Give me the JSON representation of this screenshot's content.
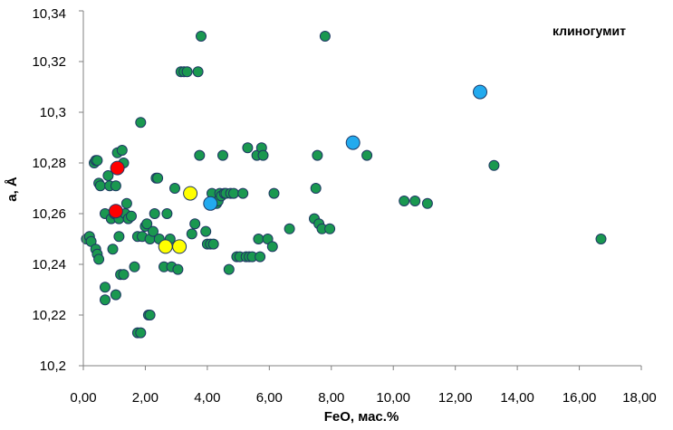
{
  "chart_data": {
    "type": "scatter",
    "title": "",
    "annotation": "клиногумит",
    "xlabel": "FeO, мас.%",
    "ylabel": "a, Å",
    "xlim": [
      0,
      18
    ],
    "ylim": [
      10.2,
      10.34
    ],
    "x_ticks": [
      "0,00",
      "2,00",
      "4,00",
      "6,00",
      "8,00",
      "10,00",
      "12,00",
      "14,00",
      "16,00",
      "18,00"
    ],
    "y_ticks": [
      "10,2",
      "10,22",
      "10,24",
      "10,26",
      "10,28",
      "10,3",
      "10,32",
      "10,34"
    ],
    "grid": false,
    "legend": "none",
    "colors": {
      "green": "#1a9850",
      "red": "#ff0000",
      "yellow": "#ffff00",
      "blue": "#22aaee",
      "marker_outline": "#1f3864",
      "axis": "#808080"
    },
    "series": [
      {
        "color": "green",
        "points": [
          [
            0.1,
            10.25
          ],
          [
            0.2,
            10.251
          ],
          [
            0.25,
            10.249
          ],
          [
            0.35,
            10.28
          ],
          [
            0.4,
            10.281
          ],
          [
            0.45,
            10.281
          ],
          [
            0.4,
            10.246
          ],
          [
            0.45,
            10.244
          ],
          [
            0.5,
            10.242
          ],
          [
            0.5,
            10.272
          ],
          [
            0.55,
            10.271
          ],
          [
            0.7,
            10.26
          ],
          [
            0.7,
            10.231
          ],
          [
            0.7,
            10.226
          ],
          [
            0.8,
            10.275
          ],
          [
            0.85,
            10.271
          ],
          [
            0.9,
            10.258
          ],
          [
            0.95,
            10.246
          ],
          [
            1.0,
            10.26
          ],
          [
            1.05,
            10.228
          ],
          [
            1.05,
            10.271
          ],
          [
            1.1,
            10.284
          ],
          [
            1.15,
            10.251
          ],
          [
            1.15,
            10.258
          ],
          [
            1.2,
            10.236
          ],
          [
            1.25,
            10.285
          ],
          [
            1.3,
            10.28
          ],
          [
            1.3,
            10.236
          ],
          [
            1.35,
            10.26
          ],
          [
            1.4,
            10.264
          ],
          [
            1.45,
            10.258
          ],
          [
            1.55,
            10.259
          ],
          [
            1.65,
            10.239
          ],
          [
            1.75,
            10.251
          ],
          [
            1.75,
            10.213
          ],
          [
            1.85,
            10.296
          ],
          [
            1.85,
            10.213
          ],
          [
            1.9,
            10.251
          ],
          [
            2.0,
            10.255
          ],
          [
            2.05,
            10.256
          ],
          [
            2.1,
            10.22
          ],
          [
            2.15,
            10.22
          ],
          [
            2.15,
            10.25
          ],
          [
            2.25,
            10.253
          ],
          [
            2.3,
            10.26
          ],
          [
            2.35,
            10.274
          ],
          [
            2.4,
            10.274
          ],
          [
            2.45,
            10.25
          ],
          [
            2.6,
            10.239
          ],
          [
            2.7,
            10.26
          ],
          [
            2.8,
            10.25
          ],
          [
            2.85,
            10.239
          ],
          [
            2.95,
            10.27
          ],
          [
            3.05,
            10.238
          ],
          [
            3.15,
            10.316
          ],
          [
            3.25,
            10.316
          ],
          [
            3.35,
            10.316
          ],
          [
            3.5,
            10.268
          ],
          [
            3.5,
            10.252
          ],
          [
            3.6,
            10.256
          ],
          [
            3.7,
            10.316
          ],
          [
            3.75,
            10.283
          ],
          [
            3.8,
            10.33
          ],
          [
            3.95,
            10.253
          ],
          [
            4.0,
            10.248
          ],
          [
            4.1,
            10.248
          ],
          [
            4.15,
            10.268
          ],
          [
            4.2,
            10.248
          ],
          [
            4.3,
            10.264
          ],
          [
            4.35,
            10.265
          ],
          [
            4.4,
            10.268
          ],
          [
            4.45,
            10.267
          ],
          [
            4.5,
            10.283
          ],
          [
            4.55,
            10.268
          ],
          [
            4.6,
            10.268
          ],
          [
            4.7,
            10.238
          ],
          [
            4.75,
            10.268
          ],
          [
            4.85,
            10.268
          ],
          [
            4.95,
            10.243
          ],
          [
            5.05,
            10.243
          ],
          [
            5.15,
            10.268
          ],
          [
            5.25,
            10.243
          ],
          [
            5.3,
            10.286
          ],
          [
            5.35,
            10.243
          ],
          [
            5.45,
            10.243
          ],
          [
            5.6,
            10.283
          ],
          [
            5.65,
            10.25
          ],
          [
            5.7,
            10.243
          ],
          [
            5.75,
            10.286
          ],
          [
            5.8,
            10.283
          ],
          [
            5.95,
            10.25
          ],
          [
            6.1,
            10.247
          ],
          [
            6.15,
            10.268
          ],
          [
            6.65,
            10.254
          ],
          [
            7.45,
            10.258
          ],
          [
            7.5,
            10.27
          ],
          [
            7.55,
            10.283
          ],
          [
            7.6,
            10.256
          ],
          [
            7.7,
            10.254
          ],
          [
            7.8,
            10.33
          ],
          [
            7.95,
            10.254
          ],
          [
            9.15,
            10.283
          ],
          [
            10.35,
            10.265
          ],
          [
            10.7,
            10.265
          ],
          [
            11.1,
            10.264
          ],
          [
            13.25,
            10.279
          ],
          [
            16.7,
            10.25
          ]
        ]
      },
      {
        "color": "red",
        "points": [
          [
            1.05,
            10.261
          ],
          [
            1.1,
            10.278
          ]
        ]
      },
      {
        "color": "yellow",
        "points": [
          [
            2.65,
            10.247
          ],
          [
            3.1,
            10.247
          ],
          [
            3.45,
            10.268
          ]
        ]
      },
      {
        "color": "blue",
        "points": [
          [
            4.1,
            10.264
          ],
          [
            8.7,
            10.288
          ],
          [
            12.8,
            10.308
          ]
        ]
      }
    ]
  }
}
